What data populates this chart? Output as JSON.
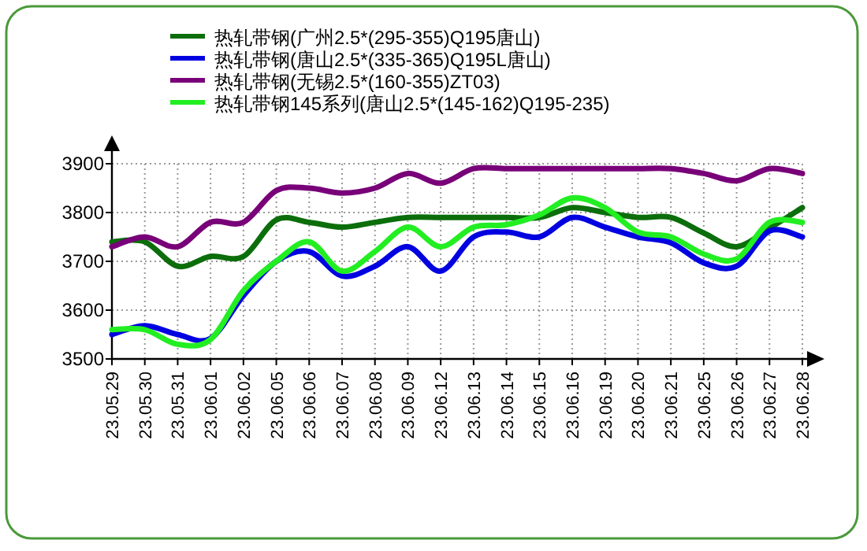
{
  "chart_data": {
    "type": "line",
    "categories": [
      "23.05.29",
      "23.05.30",
      "23.05.31",
      "23.06.01",
      "23.06.02",
      "23.06.05",
      "23.06.06",
      "23.06.07",
      "23.06.08",
      "23.06.09",
      "23.06.12",
      "23.06.13",
      "23.06.14",
      "23.06.15",
      "23.06.16",
      "23.06.19",
      "23.06.20",
      "23.06.21",
      "23.06.25",
      "23.06.26",
      "23.06.27",
      "23.06.28"
    ],
    "series": [
      {
        "name": "热轧带钢(广州2.5*(295-355)Q195唐山)",
        "color": "#0b6e0b",
        "values": [
          3740,
          3740,
          3690,
          3710,
          3710,
          3785,
          3780,
          3770,
          3780,
          3790,
          3790,
          3790,
          3790,
          3790,
          3810,
          3800,
          3790,
          3790,
          3758,
          3730,
          3768,
          3810
        ]
      },
      {
        "name": "热轧带钢(唐山2.5*(335-365)Q195L唐山)",
        "color": "#0000e0",
        "values": [
          3550,
          3568,
          3550,
          3542,
          3630,
          3700,
          3720,
          3670,
          3690,
          3730,
          3680,
          3750,
          3760,
          3750,
          3790,
          3770,
          3750,
          3738,
          3697,
          3690,
          3762,
          3750
        ]
      },
      {
        "name": "热轧带钢(无锡2.5*(160-355)ZT03)",
        "color": "#780078",
        "values": [
          3730,
          3750,
          3730,
          3780,
          3780,
          3845,
          3850,
          3840,
          3850,
          3880,
          3860,
          3890,
          3890,
          3890,
          3890,
          3890,
          3890,
          3890,
          3880,
          3865,
          3890,
          3880
        ]
      },
      {
        "name": "热轧带钢145系列(唐山2.5*(145-162)Q195-235)",
        "color": "#22ee22",
        "values": [
          3560,
          3560,
          3530,
          3540,
          3640,
          3700,
          3740,
          3680,
          3720,
          3770,
          3730,
          3770,
          3775,
          3795,
          3830,
          3810,
          3760,
          3750,
          3715,
          3705,
          3780,
          3780
        ]
      }
    ],
    "ylim": [
      3500,
      3900
    ],
    "yticks": [
      3500,
      3600,
      3700,
      3800,
      3900
    ],
    "grid": true,
    "legend": "top"
  }
}
